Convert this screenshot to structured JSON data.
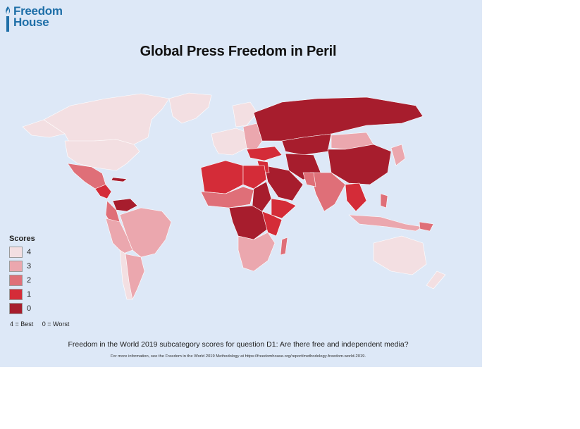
{
  "logo": {
    "line1": "Freedom",
    "line2": "House",
    "color": "#1f6fa8"
  },
  "title": "Global Press Freedom in Peril",
  "legend": {
    "title": "Scores",
    "items": [
      {
        "label": "4",
        "color": "#f3dfe2"
      },
      {
        "label": "3",
        "color": "#eba7ae"
      },
      {
        "label": "2",
        "color": "#df6f78"
      },
      {
        "label": "1",
        "color": "#d42c38"
      },
      {
        "label": "0",
        "color": "#a71d2d"
      }
    ],
    "note_best": "4 = Best",
    "note_worst": "0 = Worst"
  },
  "caption": "Freedom in the World 2019 subcategory scores for question D1: Are there free and independent media?",
  "footnote": "For more information, see the Freedom in the World 2019 Methodology at https://freedomhouse.org/report/methodology-freedom-world-2019.",
  "colors": {
    "ocean": "#dde8f7",
    "border": "#ffffff"
  }
}
